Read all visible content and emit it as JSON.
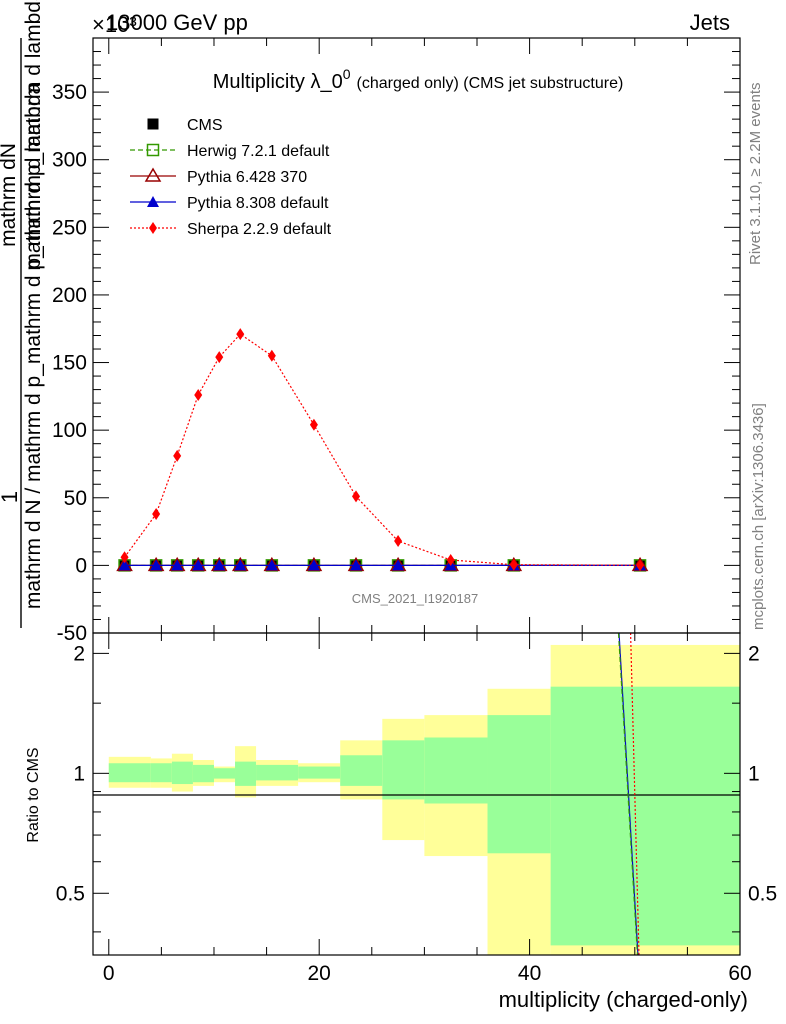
{
  "header": {
    "left": "13000 GeV pp",
    "right": "Jets",
    "exponent": "×10³"
  },
  "side_labels": {
    "rivet": "Rivet 3.1.10, ≥ 2.2M events",
    "mcplots": "mcplots.cern.ch [arXiv:1306.3436]"
  },
  "watermark": "CMS_2021_I1920187",
  "colors": {
    "cms": "#000000",
    "herwig": "#339900",
    "pythia6": "#990000",
    "pythia8": "#0000cc",
    "sherpa": "#ff0000",
    "band_stat": "#99ff99",
    "band_tot": "#ffff99"
  },
  "chart_data": [
    {
      "type": "line",
      "title": "Multiplicity λ_0⁰ (charged only) (CMS jet substructure)",
      "title_main": "Multiplicity λ_0",
      "title_sup": "0",
      "title_rest": "(charged only) (CMS jet substructure)",
      "ylabel_top": "1",
      "ylabel_num": "mathrm dN",
      "ylabel_den": "mathrm d N / mathrm d p_mathrm d p_mathrm d lambda",
      "ylabel_den2": "mathrm d p_mathrm d lambda",
      "xlim": [
        -1.5,
        60
      ],
      "ylim": [
        -50,
        390
      ],
      "y_ticks": [
        -50,
        0,
        50,
        100,
        150,
        200,
        250,
        300,
        350
      ],
      "x": [
        1.5,
        4.5,
        6.5,
        8.5,
        10.5,
        12.5,
        15.5,
        19.5,
        23.5,
        27.5,
        32.5,
        38.5,
        50.5
      ],
      "series": [
        {
          "name": "CMS",
          "marker": "square-filled",
          "values": [
            0,
            0,
            0,
            0,
            0,
            0,
            0,
            0,
            0,
            0,
            0,
            0,
            0
          ]
        },
        {
          "name": "Herwig 7.2.1 default",
          "marker": "square-open",
          "values": [
            0,
            0,
            0,
            0,
            0,
            0,
            0,
            0,
            0,
            0,
            0,
            0,
            0
          ]
        },
        {
          "name": "Pythia 6.428 370",
          "marker": "triangle-open",
          "values": [
            0,
            0,
            0,
            0,
            0,
            0,
            0,
            0,
            0,
            0,
            0,
            0,
            0
          ]
        },
        {
          "name": "Pythia 8.308 default",
          "marker": "triangle-filled",
          "values": [
            0,
            0,
            0,
            0,
            0,
            0,
            0,
            0,
            0,
            0,
            0,
            0,
            0
          ]
        },
        {
          "name": "Sherpa 2.2.9 default",
          "marker": "diamond-filled",
          "values": [
            6,
            38,
            81,
            126,
            154,
            171,
            155,
            104,
            51,
            18,
            4,
            0.5,
            0.1
          ]
        }
      ]
    },
    {
      "type": "area",
      "ylabel": "Ratio to CMS",
      "xlabel": "multiplicity (charged-only)",
      "xlim": [
        -1.5,
        60
      ],
      "ylim": [
        0.35,
        2.25
      ],
      "log_y": true,
      "x_ticks": [
        0,
        20,
        40,
        60
      ],
      "y_ticks": [
        0.5,
        1,
        2
      ],
      "bins": [
        {
          "x0": 0,
          "x1": 4,
          "stat": [
            0.95,
            1.06
          ],
          "total": [
            0.92,
            1.1
          ]
        },
        {
          "x0": 4,
          "x1": 6,
          "stat": [
            0.95,
            1.06
          ],
          "total": [
            0.92,
            1.09
          ]
        },
        {
          "x0": 6,
          "x1": 8,
          "stat": [
            0.94,
            1.07
          ],
          "total": [
            0.9,
            1.12
          ]
        },
        {
          "x0": 8,
          "x1": 10,
          "stat": [
            0.95,
            1.05
          ],
          "total": [
            0.93,
            1.08
          ]
        },
        {
          "x0": 10,
          "x1": 12,
          "stat": [
            0.97,
            1.03
          ],
          "total": [
            0.95,
            1.04
          ]
        },
        {
          "x0": 12,
          "x1": 14,
          "stat": [
            0.93,
            1.07
          ],
          "total": [
            0.87,
            1.17
          ]
        },
        {
          "x0": 14,
          "x1": 18,
          "stat": [
            0.96,
            1.05
          ],
          "total": [
            0.93,
            1.08
          ]
        },
        {
          "x0": 18,
          "x1": 22,
          "stat": [
            0.97,
            1.04
          ],
          "total": [
            0.95,
            1.06
          ]
        },
        {
          "x0": 22,
          "x1": 26,
          "stat": [
            0.93,
            1.11
          ],
          "total": [
            0.86,
            1.21
          ]
        },
        {
          "x0": 26,
          "x1": 30,
          "stat": [
            0.86,
            1.21
          ],
          "total": [
            0.68,
            1.37
          ]
        },
        {
          "x0": 30,
          "x1": 36,
          "stat": [
            0.84,
            1.23
          ],
          "total": [
            0.62,
            1.4
          ]
        },
        {
          "x0": 36,
          "x1": 42,
          "stat": [
            0.63,
            1.4
          ],
          "total": [
            0.35,
            1.63
          ]
        },
        {
          "x0": 42,
          "x1": 60,
          "stat": [
            0.37,
            1.65
          ],
          "total": [
            0.35,
            2.1
          ]
        }
      ],
      "series": [
        {
          "name": "Pythia 8.308 default",
          "x": [
            48.5,
            50.3
          ],
          "values": [
            2.25,
            0.35
          ]
        },
        {
          "name": "Herwig 7.2.1 default",
          "x": [
            48.45,
            50.25
          ],
          "values": [
            2.25,
            0.35
          ]
        },
        {
          "name": "Sherpa 2.2.9 default",
          "x": [
            49.6,
            50.4
          ],
          "values": [
            2.25,
            0.35
          ]
        }
      ]
    }
  ]
}
